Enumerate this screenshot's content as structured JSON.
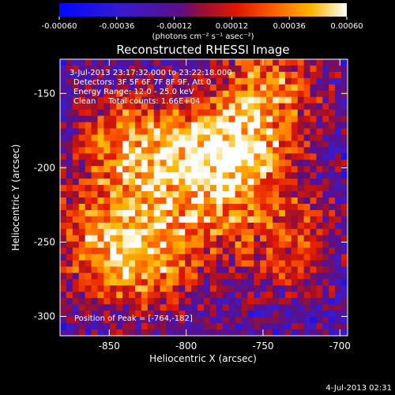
{
  "chart_data": {
    "type": "heatmap",
    "colorbar": {
      "tick_labels": [
        "-0.00060",
        "-0.00036",
        "-0.00012",
        "0.00012",
        "0.00036",
        "0.00060"
      ],
      "range": [
        -0.0006,
        0.0006
      ],
      "unit_label": "(photons cm⁻² s⁻¹ asec⁻²)"
    },
    "title": "Reconstructed RHESSI Image",
    "annotations": {
      "time_range": "3-Jul-2013 23:17:32.000 to 23:22:18.000",
      "detectors": "Detectors: 3F 5F 6F 7F 8F 9F, Att 0",
      "energy": "Energy Range: 12.0 - 25.0 keV",
      "clean": "Clean     Total counts: 1.66E+04",
      "peak": "Position of Peak = [-764,-182]"
    },
    "xlabel": "Heliocentric X (arcsec)",
    "ylabel": "Heliocentric Y (arcsec)",
    "xlim": [
      -882,
      -695
    ],
    "ylim": [
      -313,
      -127
    ],
    "x_ticks": [
      -850,
      -800,
      -750,
      -700
    ],
    "y_ticks": [
      -150,
      -200,
      -250,
      -300
    ],
    "x_tick_labels": [
      "-850",
      "-800",
      "-750",
      "-700"
    ],
    "y_tick_labels": [
      "-150",
      "-200",
      "-250",
      "-300"
    ],
    "peak_position": [
      -764,
      -182
    ],
    "bright_sources": [
      {
        "x": -836,
        "y": -184,
        "value": 0.0006
      },
      {
        "x": -764,
        "y": -182,
        "value": 0.0006
      },
      {
        "x": -790,
        "y": -212,
        "value": 0.0005
      },
      {
        "x": -855,
        "y": -248,
        "value": 0.00048
      },
      {
        "x": -822,
        "y": -265,
        "value": 0.00045
      },
      {
        "x": -745,
        "y": -138,
        "value": 0.00042
      },
      {
        "x": -735,
        "y": -250,
        "value": 0.00042
      }
    ]
  },
  "footer": {
    "timestamp": "4-Jul-2013 02:31"
  }
}
